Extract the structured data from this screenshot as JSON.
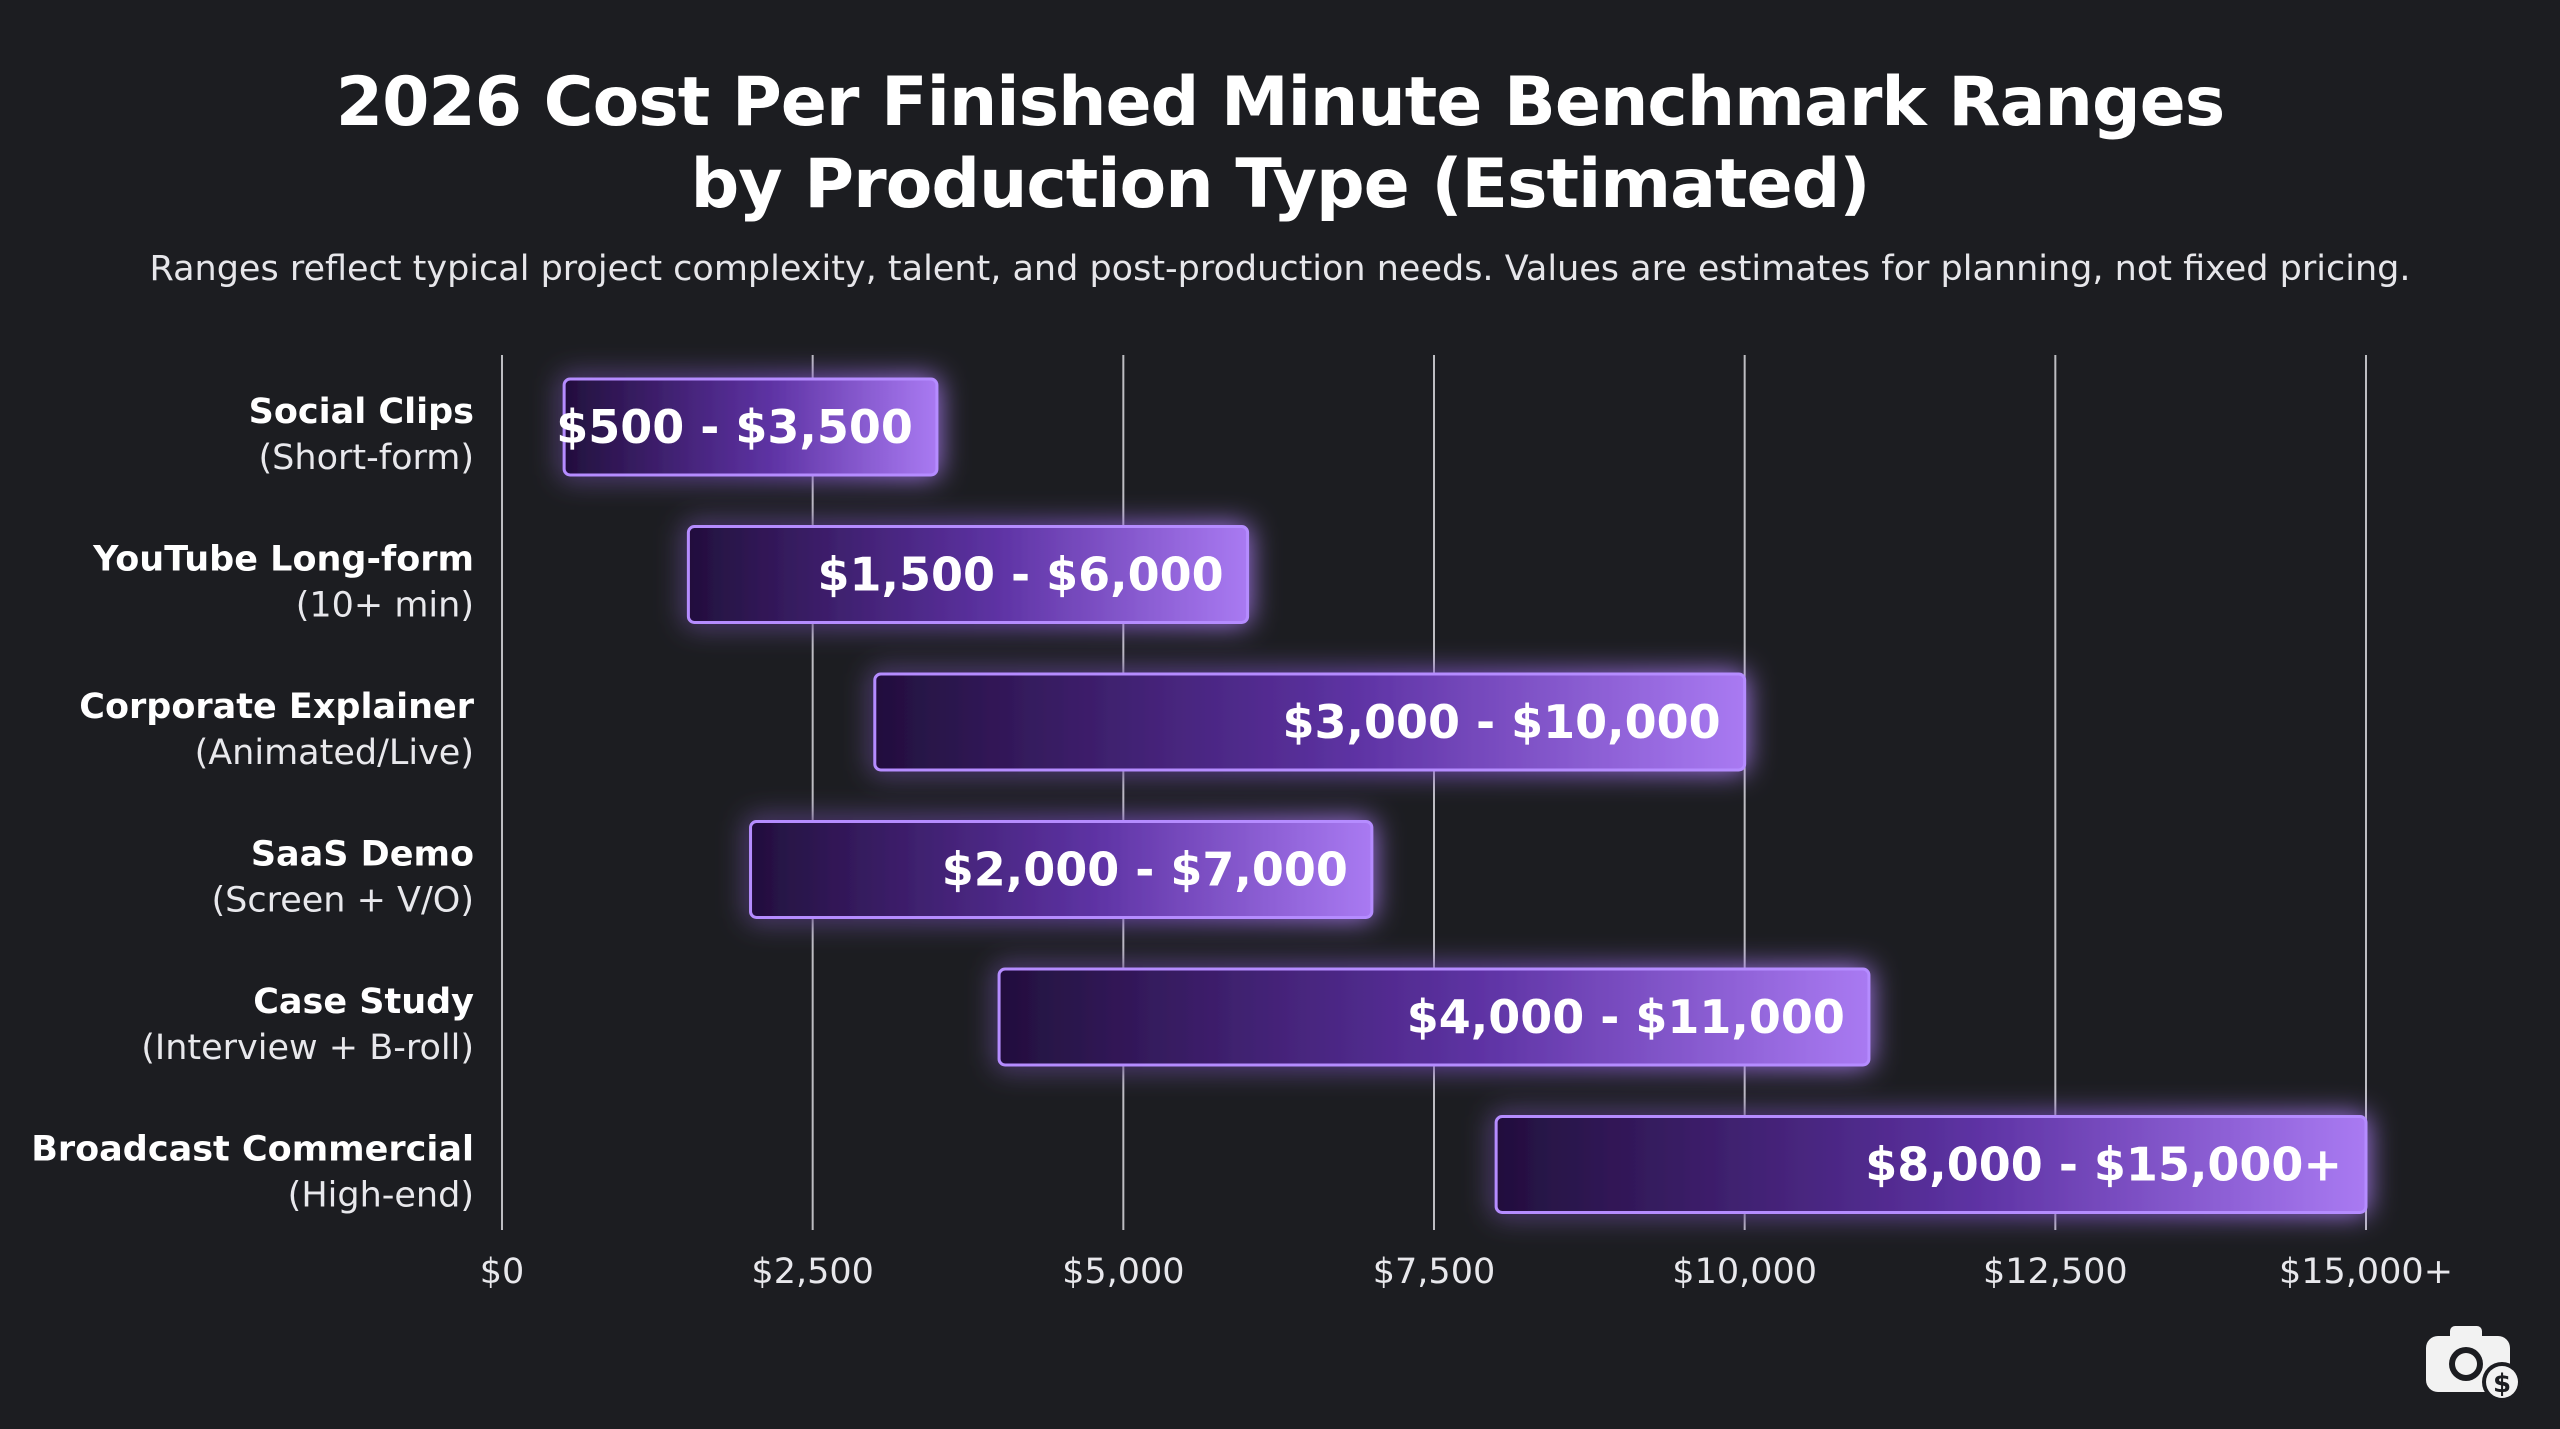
{
  "chart_data": {
    "type": "bar",
    "orientation": "horizontal-range",
    "title_lines": [
      "2026 Cost Per Finished Minute Benchmark Ranges",
      "by Production Type (Estimated)"
    ],
    "subtitle": "Ranges reflect typical project complexity, talent, and post-production needs. Values are estimates for planning, not fixed pricing.",
    "xlim": [
      0,
      15000
    ],
    "x_ticks": [
      {
        "value": 0,
        "label": "$0"
      },
      {
        "value": 2500,
        "label": "$2,500"
      },
      {
        "value": 5000,
        "label": "$5,000"
      },
      {
        "value": 7500,
        "label": "$7,500"
      },
      {
        "value": 10000,
        "label": "$10,000"
      },
      {
        "value": 12500,
        "label": "$12,500"
      },
      {
        "value": 15000,
        "label": "$15,000+"
      }
    ],
    "grid": true,
    "categories": [
      {
        "name": "Social Clips",
        "sub": "(Short-form)",
        "low": 500,
        "high": 3500,
        "label": "$500 - $3,500"
      },
      {
        "name": "YouTube Long-form",
        "sub": "(10+ min)",
        "low": 1500,
        "high": 6000,
        "label": "$1,500 - $6,000"
      },
      {
        "name": "Corporate Explainer",
        "sub": "(Animated/Live)",
        "low": 3000,
        "high": 10000,
        "label": "$3,000 - $10,000"
      },
      {
        "name": "SaaS Demo",
        "sub": "(Screen + V/O)",
        "low": 2000,
        "high": 7000,
        "label": "$2,000 - $7,000"
      },
      {
        "name": "Case Study",
        "sub": "(Interview + B-roll)",
        "low": 4000,
        "high": 11000,
        "label": "$4,000 - $11,000"
      },
      {
        "name": "Broadcast Commercial",
        "sub": "(High-end)",
        "low": 8000,
        "high": 15000,
        "label": "$8,000 - $15,000+"
      }
    ],
    "colors": {
      "background": "#1c1d21",
      "bar_dark": "#2a1448",
      "bar_light": "#a574f0",
      "bar_border": "#b58cff",
      "glow": "#8a4dff",
      "grid": "#d9d9de"
    }
  },
  "logo": {
    "icon": "camera-dollar-icon"
  }
}
